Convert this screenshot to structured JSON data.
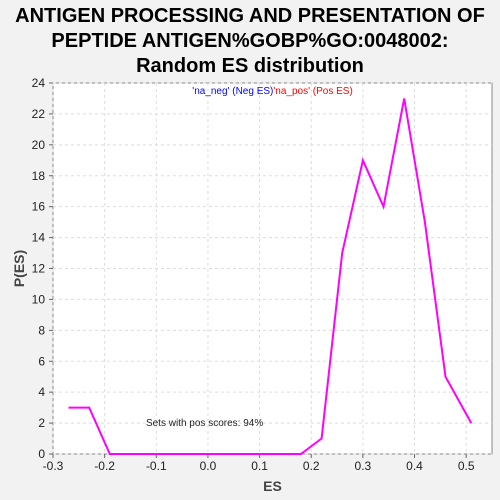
{
  "chart_data": {
    "type": "line",
    "title_lines": [
      "ANTIGEN PROCESSING AND PRESENTATION OF",
      "PEPTIDE ANTIGEN%GOBP%GO:0048002:",
      "Random ES distribution"
    ],
    "xlabel": "ES",
    "ylabel": "P(ES)",
    "xlim": [
      -0.3,
      0.55
    ],
    "ylim": [
      0,
      24
    ],
    "xticks": [
      -0.3,
      -0.2,
      -0.1,
      0.0,
      0.1,
      0.2,
      0.3,
      0.4,
      0.5
    ],
    "xtick_labels": [
      "-0.3",
      "-0.2",
      "-0.1",
      "0.0",
      "0.1",
      "0.2",
      "0.3",
      "0.4",
      "0.5"
    ],
    "yticks": [
      0,
      2,
      4,
      6,
      8,
      10,
      12,
      14,
      16,
      18,
      20,
      22,
      24
    ],
    "ytick_labels": [
      "0",
      "2",
      "4",
      "6",
      "8",
      "10",
      "12",
      "14",
      "16",
      "18",
      "20",
      "22",
      "24"
    ],
    "grid": true,
    "legend": [
      {
        "label": "'na_neg' (Neg ES)",
        "color": "#0000ff"
      },
      {
        "label": "'na_pos' (Pos ES)",
        "color": "#ff0000"
      }
    ],
    "legend_position": "top-center",
    "annotation": "Sets with pos scores: 94%",
    "series": [
      {
        "color": "#ff00ff",
        "x": [
          -0.27,
          -0.23,
          -0.19,
          -0.15,
          -0.11,
          -0.07,
          -0.03,
          0.01,
          0.05,
          0.09,
          0.14,
          0.18,
          0.22,
          0.26,
          0.3,
          0.34,
          0.38,
          0.42,
          0.46,
          0.51
        ],
        "y": [
          3,
          3,
          0,
          0,
          0,
          0,
          0,
          0,
          0,
          0,
          0,
          0,
          1,
          13,
          19,
          16,
          23,
          15,
          5,
          2
        ]
      }
    ]
  }
}
